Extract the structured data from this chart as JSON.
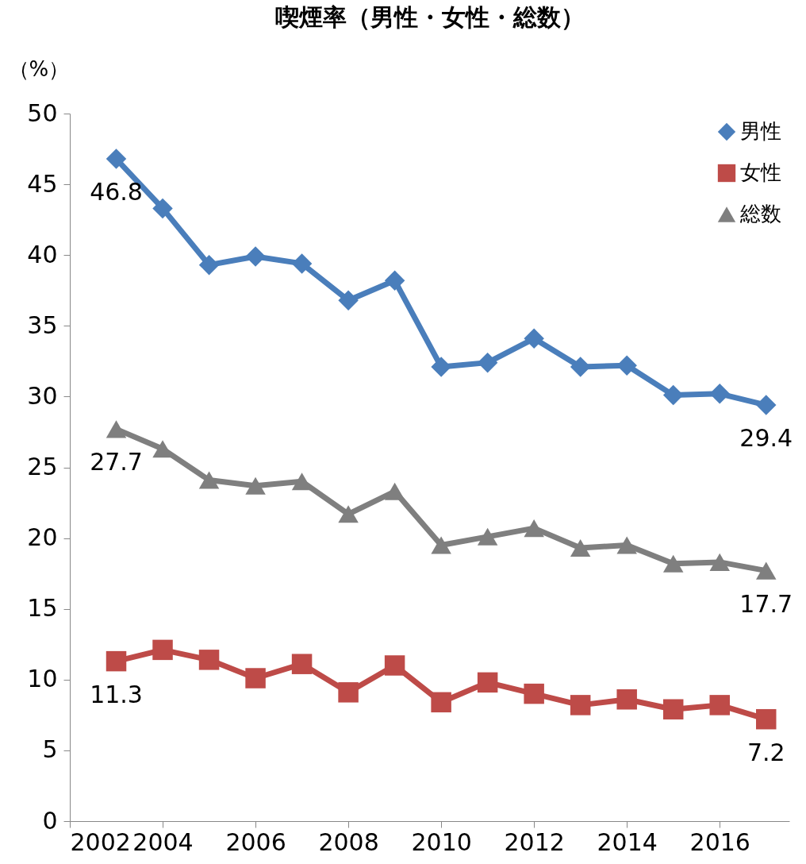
{
  "chart_data": {
    "type": "line",
    "title": "喫煙率（男性・女性・総数）",
    "ylabel": "（%）",
    "x": [
      2003,
      2004,
      2005,
      2006,
      2007,
      2008,
      2009,
      2010,
      2011,
      2012,
      2013,
      2014,
      2015,
      2016,
      2017
    ],
    "xlim": [
      2002,
      2017.5
    ],
    "xticks": [
      2002,
      2004,
      2006,
      2008,
      2010,
      2012,
      2014,
      2016
    ],
    "ylim": [
      0,
      50
    ],
    "yticks": [
      0,
      5,
      10,
      15,
      20,
      25,
      30,
      35,
      40,
      45,
      50
    ],
    "grid": false,
    "legend": "top right",
    "line_style": "solid",
    "series": [
      {
        "name": "男性",
        "color": "#4a7ebb",
        "marker": "diamond",
        "values": [
          46.8,
          43.3,
          39.3,
          39.9,
          39.4,
          36.8,
          38.2,
          32.1,
          32.4,
          34.1,
          32.1,
          32.2,
          30.1,
          30.2,
          29.4
        ],
        "value_labels": [
          "46.8",
          null,
          null,
          null,
          null,
          null,
          null,
          null,
          null,
          null,
          null,
          null,
          null,
          null,
          "29.4"
        ]
      },
      {
        "name": "女性",
        "color": "#be4b48",
        "marker": "square",
        "values": [
          11.3,
          12.1,
          11.4,
          10.1,
          11.1,
          9.1,
          11.0,
          8.4,
          9.8,
          9.0,
          8.2,
          8.6,
          7.9,
          8.2,
          7.2
        ],
        "value_labels": [
          "11.3",
          null,
          null,
          null,
          null,
          null,
          null,
          null,
          null,
          null,
          null,
          null,
          null,
          null,
          "7.2"
        ]
      },
      {
        "name": "総数",
        "color": "#7f7f7f",
        "marker": "triangle",
        "values": [
          27.7,
          26.3,
          24.1,
          23.7,
          24.0,
          21.7,
          23.3,
          19.5,
          20.1,
          20.7,
          19.3,
          19.5,
          18.2,
          18.3,
          17.7
        ],
        "value_labels": [
          "27.7",
          null,
          null,
          null,
          null,
          null,
          null,
          null,
          null,
          null,
          null,
          null,
          null,
          null,
          "17.7"
        ]
      }
    ]
  }
}
